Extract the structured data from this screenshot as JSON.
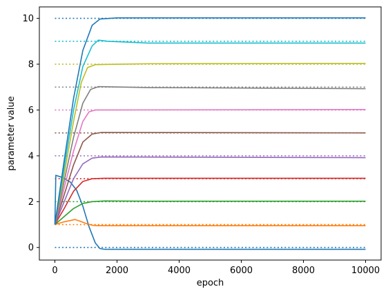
{
  "chart_data": {
    "type": "line",
    "title": "",
    "xlabel": "epoch",
    "ylabel": "parameter value",
    "xlim": [
      -500,
      10500
    ],
    "ylim": [
      -0.55,
      10.5
    ],
    "xticks": [
      0,
      2000,
      4000,
      6000,
      8000,
      10000
    ],
    "yticks": [
      0,
      2,
      4,
      6,
      8,
      10
    ],
    "grid": false,
    "legend": "none",
    "series": [
      {
        "color": "#1f77b4",
        "target": 0,
        "linestyle": "solid",
        "points": [
          [
            0,
            1
          ],
          [
            30,
            3.15
          ],
          [
            250,
            3.05
          ],
          [
            500,
            2.85
          ],
          [
            700,
            2.5
          ],
          [
            900,
            1.8
          ],
          [
            1100,
            0.9
          ],
          [
            1300,
            0.2
          ],
          [
            1450,
            -0.05
          ],
          [
            1600,
            -0.08
          ],
          [
            10000,
            -0.08
          ]
        ]
      },
      {
        "color": "#ff7f0e",
        "target": 1,
        "linestyle": "solid",
        "points": [
          [
            0,
            1
          ],
          [
            300,
            1.12
          ],
          [
            650,
            1.22
          ],
          [
            800,
            1.15
          ],
          [
            1000,
            1.05
          ],
          [
            1200,
            0.97
          ],
          [
            1400,
            0.95
          ],
          [
            10000,
            0.95
          ]
        ]
      },
      {
        "color": "#2ca02c",
        "target": 2,
        "linestyle": "solid",
        "points": [
          [
            0,
            1
          ],
          [
            300,
            1.35
          ],
          [
            600,
            1.7
          ],
          [
            900,
            1.92
          ],
          [
            1200,
            2.0
          ],
          [
            1600,
            2.03
          ],
          [
            3000,
            2.02
          ],
          [
            10000,
            2.02
          ]
        ]
      },
      {
        "color": "#d62728",
        "target": 3,
        "linestyle": "solid",
        "points": [
          [
            0,
            1
          ],
          [
            300,
            1.7
          ],
          [
            600,
            2.45
          ],
          [
            900,
            2.88
          ],
          [
            1200,
            3.0
          ],
          [
            1600,
            3.02
          ],
          [
            10000,
            3.02
          ]
        ]
      },
      {
        "color": "#9467bd",
        "target": 4,
        "linestyle": "solid",
        "points": [
          [
            0,
            1
          ],
          [
            300,
            2.0
          ],
          [
            600,
            3.0
          ],
          [
            900,
            3.65
          ],
          [
            1200,
            3.9
          ],
          [
            1500,
            3.95
          ],
          [
            10000,
            3.92
          ]
        ]
      },
      {
        "color": "#8c564b",
        "target": 5,
        "linestyle": "solid",
        "points": [
          [
            0,
            1
          ],
          [
            300,
            2.3
          ],
          [
            600,
            3.6
          ],
          [
            900,
            4.6
          ],
          [
            1200,
            4.95
          ],
          [
            1500,
            5.02
          ],
          [
            10000,
            5.0
          ]
        ]
      },
      {
        "color": "#e377c2",
        "target": 6,
        "linestyle": "solid",
        "points": [
          [
            0,
            1
          ],
          [
            300,
            2.6
          ],
          [
            600,
            4.2
          ],
          [
            900,
            5.5
          ],
          [
            1100,
            5.92
          ],
          [
            1300,
            6.0
          ],
          [
            10000,
            6.02
          ]
        ]
      },
      {
        "color": "#7f7f7f",
        "target": 7,
        "linestyle": "solid",
        "points": [
          [
            0,
            1
          ],
          [
            300,
            2.9
          ],
          [
            600,
            4.8
          ],
          [
            900,
            6.3
          ],
          [
            1150,
            6.9
          ],
          [
            1400,
            7.02
          ],
          [
            3000,
            6.98
          ],
          [
            10000,
            6.93
          ]
        ]
      },
      {
        "color": "#bcbd22",
        "target": 8,
        "linestyle": "solid",
        "points": [
          [
            0,
            1
          ],
          [
            300,
            3.2
          ],
          [
            600,
            5.5
          ],
          [
            850,
            7.2
          ],
          [
            1050,
            7.85
          ],
          [
            1300,
            7.98
          ],
          [
            3000,
            8.02
          ],
          [
            10000,
            8.03
          ]
        ]
      },
      {
        "color": "#17becf",
        "target": 9,
        "linestyle": "solid",
        "points": [
          [
            0,
            1
          ],
          [
            300,
            3.5
          ],
          [
            600,
            6.0
          ],
          [
            900,
            7.9
          ],
          [
            1200,
            8.8
          ],
          [
            1400,
            9.05
          ],
          [
            1700,
            9.0
          ],
          [
            3000,
            8.92
          ],
          [
            10000,
            8.92
          ]
        ]
      },
      {
        "color": "#1f77b4",
        "target": 10,
        "linestyle": "solid",
        "points": [
          [
            0,
            1
          ],
          [
            300,
            3.8
          ],
          [
            600,
            6.5
          ],
          [
            900,
            8.6
          ],
          [
            1200,
            9.7
          ],
          [
            1450,
            9.97
          ],
          [
            2000,
            10.02
          ],
          [
            10000,
            10.02
          ]
        ]
      }
    ],
    "target_lines": {
      "linestyle": "dotted",
      "x_range": [
        0,
        10000
      ],
      "values": [
        0,
        1,
        2,
        3,
        4,
        5,
        6,
        7,
        8,
        9,
        10
      ],
      "colors": [
        "#1f77b4",
        "#ff7f0e",
        "#2ca02c",
        "#d62728",
        "#9467bd",
        "#8c564b",
        "#e377c2",
        "#7f7f7f",
        "#bcbd22",
        "#17becf",
        "#1f77b4"
      ]
    }
  }
}
